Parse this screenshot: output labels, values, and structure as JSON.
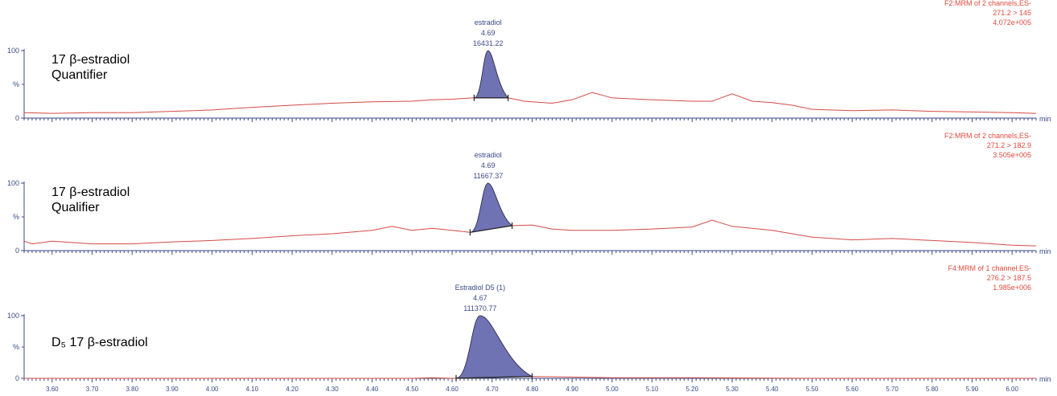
{
  "chart_data": [
    {
      "type": "line",
      "title_main": "17 β-estradiol",
      "title_sub": "Quantifier",
      "peak": {
        "name": "estradiol",
        "rt": "4.69",
        "area": "16431.22",
        "rt_value": 4.69,
        "start": 4.655,
        "end": 4.74,
        "height": 100
      },
      "info": [
        "F2:MRM of 2 channels,ES-",
        "271.2 > 145",
        "4.072e+005"
      ],
      "yticks": [
        "100",
        "%",
        "0"
      ],
      "ylim": [
        0,
        100
      ],
      "trace": [
        [
          3.53,
          8
        ],
        [
          3.6,
          7
        ],
        [
          3.7,
          8
        ],
        [
          3.8,
          8
        ],
        [
          3.9,
          10
        ],
        [
          4.0,
          12
        ],
        [
          4.1,
          16
        ],
        [
          4.2,
          19
        ],
        [
          4.3,
          22
        ],
        [
          4.4,
          24
        ],
        [
          4.5,
          25
        ],
        [
          4.55,
          27
        ],
        [
          4.6,
          28
        ],
        [
          4.655,
          30
        ],
        [
          4.74,
          30
        ],
        [
          4.78,
          25
        ],
        [
          4.85,
          22
        ],
        [
          4.9,
          27
        ],
        [
          4.95,
          38
        ],
        [
          5.0,
          30
        ],
        [
          5.1,
          27
        ],
        [
          5.2,
          25
        ],
        [
          5.25,
          25
        ],
        [
          5.3,
          36
        ],
        [
          5.35,
          25
        ],
        [
          5.4,
          23
        ],
        [
          5.45,
          19
        ],
        [
          5.5,
          13
        ],
        [
          5.6,
          11
        ],
        [
          5.7,
          12
        ],
        [
          5.8,
          10
        ],
        [
          5.9,
          9
        ],
        [
          6.0,
          8
        ],
        [
          6.06,
          7
        ]
      ]
    },
    {
      "type": "line",
      "title_main": "17 β-estradiol",
      "title_sub": "Qualifier",
      "peak": {
        "name": "estradiol",
        "rt": "4.69",
        "area": "11667.37",
        "rt_value": 4.69,
        "start": 4.645,
        "end": 4.75,
        "height": 100
      },
      "info": [
        "F2:MRM of 2 channels,ES-",
        "271.2 > 182.9",
        "3.505e+005"
      ],
      "yticks": [
        "100",
        "%",
        "0"
      ],
      "ylim": [
        0,
        100
      ],
      "trace": [
        [
          3.53,
          14
        ],
        [
          3.55,
          10
        ],
        [
          3.6,
          14
        ],
        [
          3.7,
          10
        ],
        [
          3.8,
          10
        ],
        [
          3.9,
          13
        ],
        [
          4.0,
          15
        ],
        [
          4.1,
          18
        ],
        [
          4.2,
          22
        ],
        [
          4.3,
          25
        ],
        [
          4.4,
          30
        ],
        [
          4.45,
          36
        ],
        [
          4.5,
          30
        ],
        [
          4.55,
          33
        ],
        [
          4.6,
          30
        ],
        [
          4.645,
          27
        ],
        [
          4.75,
          37
        ],
        [
          4.8,
          38
        ],
        [
          4.85,
          32
        ],
        [
          4.9,
          30
        ],
        [
          5.0,
          30
        ],
        [
          5.1,
          32
        ],
        [
          5.2,
          35
        ],
        [
          5.25,
          45
        ],
        [
          5.3,
          36
        ],
        [
          5.4,
          30
        ],
        [
          5.5,
          20
        ],
        [
          5.6,
          16
        ],
        [
          5.7,
          18
        ],
        [
          5.8,
          15
        ],
        [
          5.9,
          12
        ],
        [
          6.0,
          8
        ],
        [
          6.06,
          7
        ]
      ]
    },
    {
      "type": "line",
      "title_main": "D₅ 17 β-estradiol",
      "peak": {
        "name": "Estradiol D5 (1)",
        "rt": "4.67",
        "area": "111370.77",
        "rt_value": 4.67,
        "start": 4.61,
        "end": 4.8,
        "height": 100
      },
      "info": [
        "F4:MRM of 1 channel,ES-",
        "276.2 > 187.5",
        "1.985e+006"
      ],
      "yticks": [
        "100",
        "%",
        "0"
      ],
      "ylim": [
        0,
        100
      ],
      "trace": [
        [
          3.53,
          0
        ],
        [
          4.5,
          0
        ],
        [
          4.55,
          1
        ],
        [
          4.6,
          0
        ],
        [
          4.8,
          3
        ],
        [
          4.9,
          2
        ],
        [
          5.0,
          1
        ],
        [
          5.2,
          1
        ],
        [
          5.5,
          0
        ],
        [
          6.06,
          0
        ]
      ]
    }
  ],
  "x_axis": {
    "label": "min",
    "xlim": [
      3.53,
      6.06
    ],
    "ticks": [
      "3.60",
      "3.70",
      "3.80",
      "3.90",
      "4.00",
      "4.10",
      "4.20",
      "4.30",
      "4.40",
      "4.50",
      "4.60",
      "4.70",
      "4.80",
      "4.90",
      "5.00",
      "5.10",
      "5.20",
      "5.30",
      "5.40",
      "5.50",
      "5.60",
      "5.70",
      "5.80",
      "5.90",
      "6.00"
    ]
  },
  "colors": {
    "trace": "#d64a44",
    "peak_fill": "#6f73b3",
    "axis": "#3a4a8a",
    "info": "#e24a3c"
  }
}
